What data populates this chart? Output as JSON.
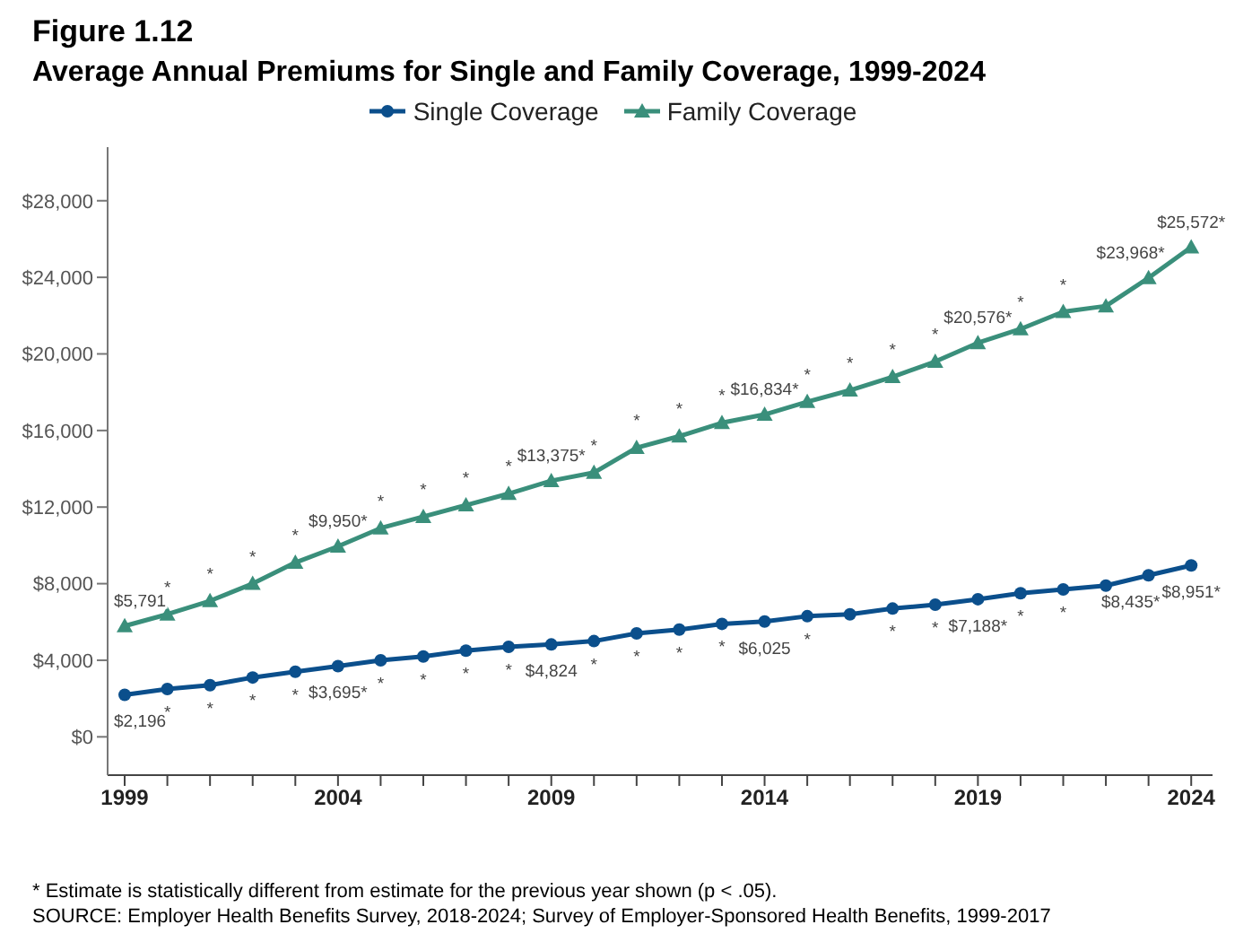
{
  "chart_data": {
    "type": "line",
    "title": "Figure 1.12",
    "subtitle": "Average Annual Premiums for Single and Family Coverage, 1999-2024",
    "x": [
      1999,
      2000,
      2001,
      2002,
      2003,
      2004,
      2005,
      2006,
      2007,
      2008,
      2009,
      2010,
      2011,
      2012,
      2013,
      2014,
      2015,
      2016,
      2017,
      2018,
      2019,
      2020,
      2021,
      2022,
      2023,
      2024
    ],
    "series": [
      {
        "name": "Single Coverage",
        "color": "#0b4f8c",
        "marker": "circle",
        "values": [
          2196,
          2500,
          2700,
          3100,
          3400,
          3695,
          4000,
          4200,
          4500,
          4700,
          4824,
          5000,
          5400,
          5600,
          5900,
          6025,
          6300,
          6400,
          6700,
          6900,
          7188,
          7500,
          7700,
          7900,
          8435,
          8951
        ],
        "value_labels": [
          "$2,196",
          "*",
          "*",
          "*",
          "*",
          "$3,695*",
          "*",
          "*",
          "*",
          "*",
          "$4,824",
          "*",
          "*",
          "*",
          "*",
          "$6,025",
          "*",
          null,
          "*",
          "*",
          "$7,188*",
          "*",
          "*",
          null,
          "$8,435*",
          "$8,951*"
        ]
      },
      {
        "name": "Family Coverage",
        "color": "#3a8f7b",
        "marker": "triangle",
        "values": [
          5791,
          6400,
          7100,
          8000,
          9100,
          9950,
          10900,
          11500,
          12100,
          12700,
          13375,
          13800,
          15100,
          15700,
          16400,
          16834,
          17500,
          18100,
          18800,
          19600,
          20576,
          21300,
          22200,
          22500,
          23968,
          25572
        ],
        "value_labels": [
          "$5,791",
          "*",
          "*",
          "*",
          "*",
          "$9,950*",
          "*",
          "*",
          "*",
          "*",
          "$13,375*",
          "*",
          "*",
          "*",
          "*",
          "$16,834*",
          "*",
          "*",
          "*",
          "*",
          "$20,576*",
          "*",
          "*",
          null,
          "$23,968*",
          "$25,572*"
        ]
      }
    ],
    "xlim": [
      1998.6,
      2024.5
    ],
    "xticks": [
      1999,
      {
        "value": 2000,
        "label": null
      },
      {
        "value": 2001,
        "label": null
      },
      {
        "value": 2002,
        "label": null
      },
      {
        "value": 2003,
        "label": null
      },
      2004,
      {
        "value": 2005,
        "label": null
      },
      {
        "value": 2006,
        "label": null
      },
      {
        "value": 2007,
        "label": null
      },
      {
        "value": 2008,
        "label": null
      },
      2009,
      {
        "value": 2010,
        "label": null
      },
      {
        "value": 2011,
        "label": null
      },
      {
        "value": 2012,
        "label": null
      },
      {
        "value": 2013,
        "label": null
      },
      2014,
      {
        "value": 2015,
        "label": null
      },
      {
        "value": 2016,
        "label": null
      },
      {
        "value": 2017,
        "label": null
      },
      {
        "value": 2018,
        "label": null
      },
      2019,
      {
        "value": 2020,
        "label": null
      },
      {
        "value": 2021,
        "label": null
      },
      {
        "value": 2022,
        "label": null
      },
      {
        "value": 2023,
        "label": null
      },
      2024
    ],
    "ylim": [
      -2000,
      30800
    ],
    "yticks": [
      {
        "value": 0,
        "label": "$0"
      },
      {
        "value": 4000,
        "label": "$4,000"
      },
      {
        "value": 8000,
        "label": "$8,000"
      },
      {
        "value": 12000,
        "label": "$12,000"
      },
      {
        "value": 16000,
        "label": "$16,000"
      },
      {
        "value": 20000,
        "label": "$20,000"
      },
      {
        "value": 24000,
        "label": "$24,000"
      },
      {
        "value": 28000,
        "label": "$28,000"
      }
    ],
    "grid": false,
    "legend": "top",
    "annotations": [
      "* Estimate is statistically different from estimate for the previous year shown (p < .05).",
      "SOURCE: Employer Health Benefits Survey, 2018-2024; Survey of Employer-Sponsored Health Benefits, 1999-2017"
    ]
  }
}
